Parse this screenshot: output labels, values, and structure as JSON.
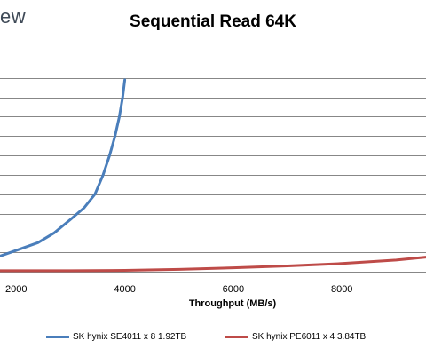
{
  "logo_text": "ew",
  "chart_data": {
    "type": "line",
    "title": "Sequential Read 64K",
    "xlabel": "Throughput (MB/s)",
    "ylabel": "",
    "xlim": [
      1700,
      9550
    ],
    "ylim": [
      0,
      11.5
    ],
    "xticks": [
      2000,
      4000,
      6000,
      8000
    ],
    "xtick_labels": [
      "2000",
      "4000",
      "6000",
      "8000"
    ],
    "ygrid_values": [
      1,
      2,
      3,
      4,
      5,
      6,
      7,
      8,
      9,
      10,
      11
    ],
    "grid": "horizontal",
    "legend_position": "bottom",
    "series": [
      {
        "name": "SK hynix SE4011 x 8 1.92TB",
        "color": "#4a7ebb",
        "x": [
          1700,
          1900,
          2100,
          2400,
          2700,
          3000,
          3250,
          3450,
          3600,
          3720,
          3820,
          3900,
          3960,
          4000
        ],
        "y": [
          0.8,
          1.0,
          1.2,
          1.5,
          2.0,
          2.7,
          3.3,
          4.0,
          5.0,
          6.0,
          7.0,
          8.0,
          9.0,
          9.9
        ]
      },
      {
        "name": "SK hynix PE6011 x 4 3.84TB",
        "color": "#be4b48",
        "x": [
          1700,
          3000,
          4000,
          5000,
          6000,
          7000,
          8000,
          9000,
          9550
        ],
        "y": [
          0.05,
          0.05,
          0.07,
          0.12,
          0.2,
          0.3,
          0.42,
          0.6,
          0.75
        ]
      }
    ]
  }
}
